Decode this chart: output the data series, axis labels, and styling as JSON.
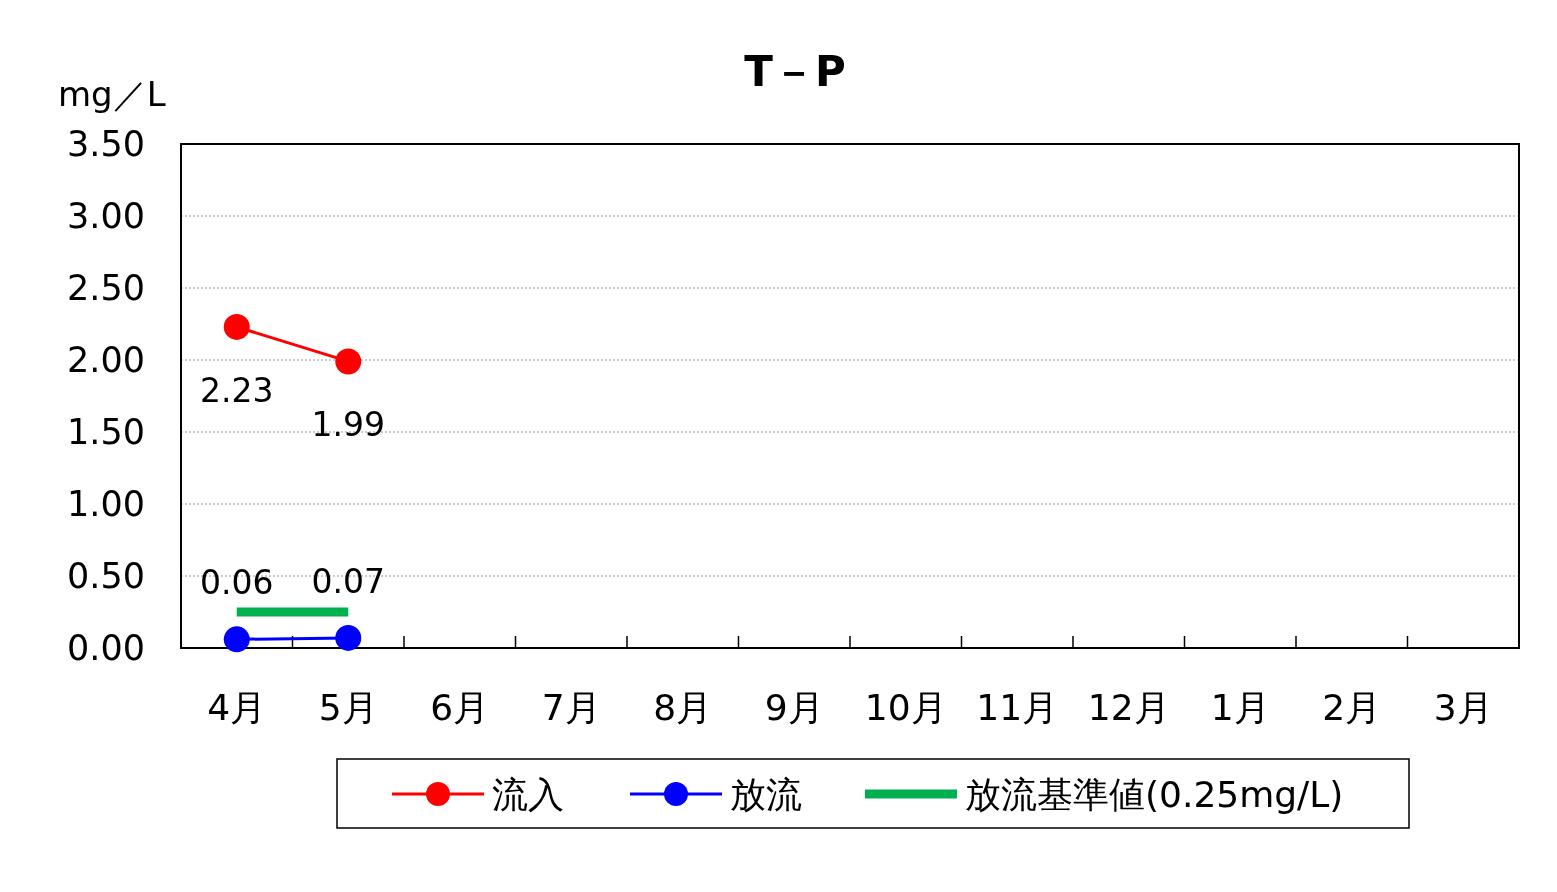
{
  "chart_data": {
    "type": "line",
    "title": "T－P",
    "ylabel": "mg／L",
    "categories": [
      "4月",
      "5月",
      "6月",
      "7月",
      "8月",
      "9月",
      "10月",
      "11月",
      "12月",
      "1月",
      "2月",
      "3月"
    ],
    "series": [
      {
        "name": "流入",
        "color": "#ff0000",
        "marker": "circle",
        "values": [
          2.23,
          1.99,
          null,
          null,
          null,
          null,
          null,
          null,
          null,
          null,
          null,
          null
        ],
        "value_labels": [
          "2.23",
          "1.99",
          null,
          null,
          null,
          null,
          null,
          null,
          null,
          null,
          null,
          null
        ]
      },
      {
        "name": "放流",
        "color": "#0000ff",
        "marker": "circle",
        "values": [
          0.06,
          0.07,
          null,
          null,
          null,
          null,
          null,
          null,
          null,
          null,
          null,
          null
        ],
        "value_labels": [
          "0.06",
          "0.07",
          null,
          null,
          null,
          null,
          null,
          null,
          null,
          null,
          null,
          null
        ]
      },
      {
        "name": "放流基準値(0.25mg/L)",
        "color": "#00b050",
        "marker": "none",
        "values": [
          0.25,
          0.25,
          null,
          null,
          null,
          null,
          null,
          null,
          null,
          null,
          null,
          null
        ]
      }
    ],
    "ylim": [
      0,
      3.5
    ],
    "yticks": [
      {
        "value": 0,
        "label": "0.00"
      },
      {
        "value": 0.5,
        "label": "0.50"
      },
      {
        "value": 1,
        "label": "1.00"
      },
      {
        "value": 1.5,
        "label": "1.50"
      },
      {
        "value": 2,
        "label": "2.00"
      },
      {
        "value": 2.5,
        "label": "2.50"
      },
      {
        "value": 3,
        "label": "3.00"
      },
      {
        "value": 3.5,
        "label": "3.50"
      }
    ],
    "grid": "y",
    "legend": "bottom",
    "line_style": "solid"
  }
}
